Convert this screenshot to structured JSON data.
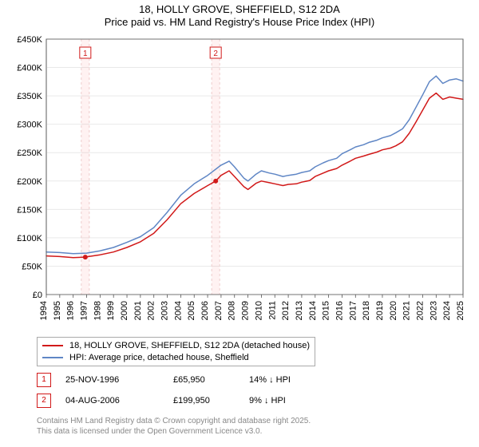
{
  "title": {
    "address": "18, HOLLY GROVE, SHEFFIELD, S12 2DA",
    "subtitle": "Price paid vs. HM Land Registry's House Price Index (HPI)"
  },
  "chart": {
    "type": "line",
    "plot_background": "#ffffff",
    "grid_color": "#e9e9e9",
    "axis_color": "#555555",
    "tick_label_fontsize": 11,
    "ylabel_prefix": "£",
    "ylim": [
      0,
      450000
    ],
    "ytick_step": 50000,
    "yticks": [
      0,
      50000,
      100000,
      150000,
      200000,
      250000,
      300000,
      350000,
      400000,
      450000
    ],
    "ytick_labels": [
      "£0",
      "£50K",
      "£100K",
      "£150K",
      "£200K",
      "£250K",
      "£300K",
      "£350K",
      "£400K",
      "£450K"
    ],
    "xlim": [
      1994,
      2025
    ],
    "xticks": [
      1994,
      1995,
      1996,
      1997,
      1998,
      1999,
      2000,
      2001,
      2002,
      2003,
      2004,
      2005,
      2006,
      2007,
      2008,
      2009,
      2010,
      2011,
      2012,
      2013,
      2014,
      2015,
      2016,
      2017,
      2018,
      2019,
      2020,
      2021,
      2022,
      2023,
      2024,
      2025
    ],
    "fmt_years_vertical": true,
    "series": [
      {
        "name": "HPI: Average price, detached house, Sheffield",
        "color": "#5f86c5",
        "line_width": 1.5,
        "points": [
          [
            1994,
            75000
          ],
          [
            1995,
            74000
          ],
          [
            1996,
            72000
          ],
          [
            1997,
            73000
          ],
          [
            1998,
            77000
          ],
          [
            1999,
            83000
          ],
          [
            2000,
            92000
          ],
          [
            2001,
            102000
          ],
          [
            2002,
            118000
          ],
          [
            2003,
            145000
          ],
          [
            2004,
            175000
          ],
          [
            2005,
            195000
          ],
          [
            2006,
            210000
          ],
          [
            2007,
            228000
          ],
          [
            2007.6,
            235000
          ],
          [
            2008,
            225000
          ],
          [
            2008.7,
            205000
          ],
          [
            2009,
            200000
          ],
          [
            2009.6,
            212000
          ],
          [
            2010,
            218000
          ],
          [
            2010.6,
            214000
          ],
          [
            2011,
            212000
          ],
          [
            2011.6,
            208000
          ],
          [
            2012,
            210000
          ],
          [
            2012.6,
            212000
          ],
          [
            2013,
            215000
          ],
          [
            2013.6,
            218000
          ],
          [
            2014,
            225000
          ],
          [
            2014.6,
            232000
          ],
          [
            2015,
            236000
          ],
          [
            2015.6,
            240000
          ],
          [
            2016,
            248000
          ],
          [
            2016.6,
            255000
          ],
          [
            2017,
            260000
          ],
          [
            2017.6,
            264000
          ],
          [
            2018,
            268000
          ],
          [
            2018.6,
            272000
          ],
          [
            2019,
            276000
          ],
          [
            2019.6,
            280000
          ],
          [
            2020,
            285000
          ],
          [
            2020.5,
            292000
          ],
          [
            2021,
            308000
          ],
          [
            2021.5,
            330000
          ],
          [
            2022,
            352000
          ],
          [
            2022.5,
            375000
          ],
          [
            2023,
            385000
          ],
          [
            2023.5,
            372000
          ],
          [
            2024,
            378000
          ],
          [
            2024.5,
            380000
          ],
          [
            2025,
            376000
          ]
        ]
      },
      {
        "name": "18, HOLLY GROVE, SHEFFIELD, S12 2DA (detached house)",
        "color": "#d11919",
        "line_width": 1.5,
        "points": [
          [
            1994,
            68000
          ],
          [
            1995,
            67000
          ],
          [
            1996,
            65000
          ],
          [
            1996.9,
            65950
          ],
          [
            1997,
            66500
          ],
          [
            1998,
            70000
          ],
          [
            1999,
            75000
          ],
          [
            2000,
            83000
          ],
          [
            2001,
            93000
          ],
          [
            2002,
            108000
          ],
          [
            2003,
            132000
          ],
          [
            2004,
            160000
          ],
          [
            2005,
            178000
          ],
          [
            2006,
            192000
          ],
          [
            2006.6,
            199950
          ],
          [
            2007,
            210000
          ],
          [
            2007.6,
            218000
          ],
          [
            2008,
            208000
          ],
          [
            2008.7,
            190000
          ],
          [
            2009,
            185000
          ],
          [
            2009.6,
            196000
          ],
          [
            2010,
            200000
          ],
          [
            2010.6,
            197000
          ],
          [
            2011,
            195000
          ],
          [
            2011.6,
            192000
          ],
          [
            2012,
            194000
          ],
          [
            2012.6,
            195000
          ],
          [
            2013,
            198000
          ],
          [
            2013.6,
            201000
          ],
          [
            2014,
            208000
          ],
          [
            2014.6,
            214000
          ],
          [
            2015,
            218000
          ],
          [
            2015.6,
            222000
          ],
          [
            2016,
            228000
          ],
          [
            2016.6,
            235000
          ],
          [
            2017,
            240000
          ],
          [
            2017.6,
            244000
          ],
          [
            2018,
            247000
          ],
          [
            2018.6,
            251000
          ],
          [
            2019,
            255000
          ],
          [
            2019.6,
            258000
          ],
          [
            2020,
            262000
          ],
          [
            2020.5,
            269000
          ],
          [
            2021,
            284000
          ],
          [
            2021.5,
            304000
          ],
          [
            2022,
            325000
          ],
          [
            2022.5,
            346000
          ],
          [
            2023,
            355000
          ],
          [
            2023.5,
            344000
          ],
          [
            2024,
            348000
          ],
          [
            2024.5,
            346000
          ],
          [
            2025,
            344000
          ]
        ]
      }
    ],
    "sale_markers": [
      {
        "n": "1",
        "year": 1996.9,
        "price": 65950,
        "color": "#d11919",
        "band_color": "rgba(255,0,0,0.05)",
        "dash_color": "#eecccc"
      },
      {
        "n": "2",
        "year": 2006.6,
        "price": 199950,
        "color": "#d11919",
        "band_color": "rgba(255,0,0,0.05)",
        "dash_color": "#eecccc"
      }
    ],
    "marker_box_border": "#d11919",
    "marker_box_fill": "#ffffff",
    "marker_box_size": 14,
    "marker_dot_radius": 3
  },
  "legend": {
    "series1_label": "18, HOLLY GROVE, SHEFFIELD, S12 2DA (detached house)",
    "series2_label": "HPI: Average price, detached house, Sheffield",
    "series1_color": "#d11919",
    "series2_color": "#5f86c5"
  },
  "sales": [
    {
      "n": "1",
      "date": "25-NOV-1996",
      "price": "£65,950",
      "diff": "14% ↓ HPI"
    },
    {
      "n": "2",
      "date": "04-AUG-2006",
      "price": "£199,950",
      "diff": "9% ↓ HPI"
    }
  ],
  "license": {
    "line1": "Contains HM Land Registry data © Crown copyright and database right 2025.",
    "line2": "This data is licensed under the Open Government Licence v3.0."
  }
}
